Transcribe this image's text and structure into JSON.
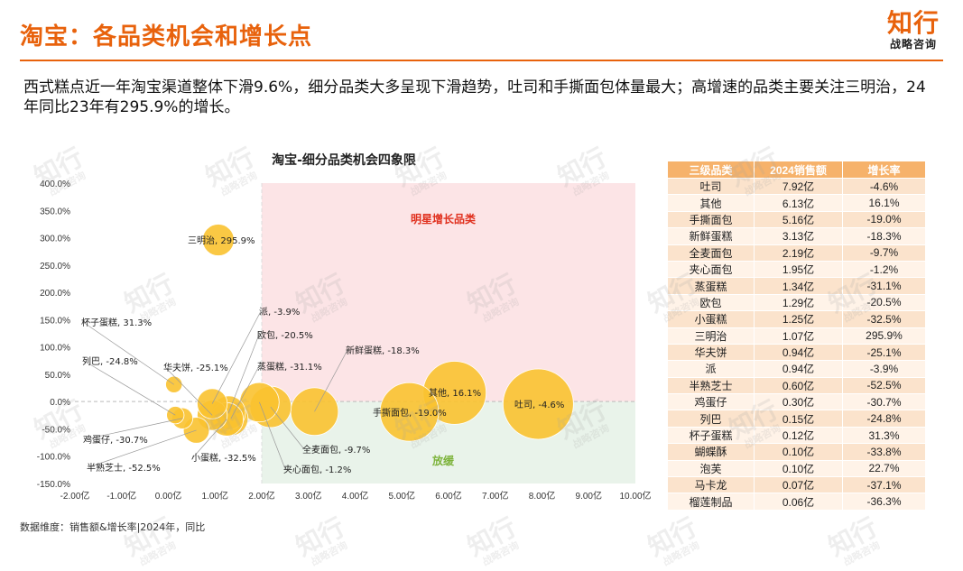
{
  "page": {
    "title": "淘宝：各品类机会和增长点",
    "logo_main": "知行",
    "logo_sub": "战略咨询",
    "description": "西式糕点近一年淘宝渠道整体下滑9.6%，细分品类大多呈现下滑趋势，吐司和手撕面包体量最大；高增速的品类主要关注三明治，24年同比23年有295.9%的增长。",
    "footer": "数据维度：销售额&增长率|2024年，同比"
  },
  "colors": {
    "accent": "#E8620C",
    "bubble": "#F9C230",
    "star_quadrant": "#FCE4E6",
    "slow_quadrant": "#E9F3EA",
    "star_label": "#E0301E",
    "slow_label": "#7DB33B",
    "table_header": "#F6B26B"
  },
  "chart_data": {
    "type": "scatter",
    "title": "淘宝-细分品类机会四象限",
    "x_ticks": [
      "-2.00亿",
      "-1.00亿",
      "0.00亿",
      "1.00亿",
      "2.00亿",
      "3.00亿",
      "4.00亿",
      "5.00亿",
      "6.00亿",
      "7.00亿",
      "8.00亿",
      "9.00亿",
      "10.00亿"
    ],
    "y_ticks": [
      "400.0%",
      "350.0%",
      "300.0%",
      "250.0%",
      "200.0%",
      "150.0%",
      "100.0%",
      "50.0%",
      "0.0%",
      "-50.0%",
      "-100.0%",
      "-150.0%"
    ],
    "xlim": [
      -2,
      10
    ],
    "ylim": [
      -150,
      400
    ],
    "quadrants": {
      "star": "明星增长品类",
      "slow": "放缓"
    },
    "points": [
      {
        "label": "吐司, -4.6%",
        "x": 7.92,
        "y": -4.6
      },
      {
        "label": "其他, 16.1%",
        "x": 6.13,
        "y": 16.1
      },
      {
        "label": "手撕面包, -19.0%",
        "x": 5.16,
        "y": -19.0
      },
      {
        "label": "新鲜蛋糕, -18.3%",
        "x": 3.13,
        "y": -18.3
      },
      {
        "label": "全麦面包, -9.7%",
        "x": 2.19,
        "y": -9.7
      },
      {
        "label": "夹心面包, -1.2%",
        "x": 1.95,
        "y": -1.2
      },
      {
        "label": "蒸蛋糕, -31.1%",
        "x": 1.34,
        "y": -31.1
      },
      {
        "label": "欧包, -20.5%",
        "x": 1.29,
        "y": -20.5
      },
      {
        "label": "小蛋糕, -32.5%",
        "x": 1.25,
        "y": -32.5
      },
      {
        "label": "三明治, 295.9%",
        "x": 1.07,
        "y": 295.9
      },
      {
        "label": "华夫饼, -25.1%",
        "x": 0.94,
        "y": -25.1
      },
      {
        "label": "派, -3.9%",
        "x": 0.94,
        "y": -3.9
      },
      {
        "label": "半熟芝士, -52.5%",
        "x": 0.6,
        "y": -52.5
      },
      {
        "label": "鸡蛋仔, -30.7%",
        "x": 0.3,
        "y": -30.7
      },
      {
        "label": "列巴, -24.8%",
        "x": 0.15,
        "y": -24.8
      },
      {
        "label": "杯子蛋糕, 31.3%",
        "x": 0.12,
        "y": 31.3
      }
    ]
  },
  "table": {
    "headers": [
      "三级品类",
      "2024销售额",
      "增长率"
    ],
    "rows": [
      [
        "吐司",
        "7.92亿",
        "-4.6%"
      ],
      [
        "其他",
        "6.13亿",
        "16.1%"
      ],
      [
        "手撕面包",
        "5.16亿",
        "-19.0%"
      ],
      [
        "新鲜蛋糕",
        "3.13亿",
        "-18.3%"
      ],
      [
        "全麦面包",
        "2.19亿",
        "-9.7%"
      ],
      [
        "夹心面包",
        "1.95亿",
        "-1.2%"
      ],
      [
        "蒸蛋糕",
        "1.34亿",
        "-31.1%"
      ],
      [
        "欧包",
        "1.29亿",
        "-20.5%"
      ],
      [
        "小蛋糕",
        "1.25亿",
        "-32.5%"
      ],
      [
        "三明治",
        "1.07亿",
        "295.9%"
      ],
      [
        "华夫饼",
        "0.94亿",
        "-25.1%"
      ],
      [
        "派",
        "0.94亿",
        "-3.9%"
      ],
      [
        "半熟芝士",
        "0.60亿",
        "-52.5%"
      ],
      [
        "鸡蛋仔",
        "0.30亿",
        "-30.7%"
      ],
      [
        "列巴",
        "0.15亿",
        "-24.8%"
      ],
      [
        "杯子蛋糕",
        "0.12亿",
        "31.3%"
      ],
      [
        "蝴蝶酥",
        "0.10亿",
        "-33.8%"
      ],
      [
        "泡芙",
        "0.10亿",
        "22.7%"
      ],
      [
        "马卡龙",
        "0.07亿",
        "-37.1%"
      ],
      [
        "榴莲制品",
        "0.06亿",
        "-36.3%"
      ]
    ]
  }
}
